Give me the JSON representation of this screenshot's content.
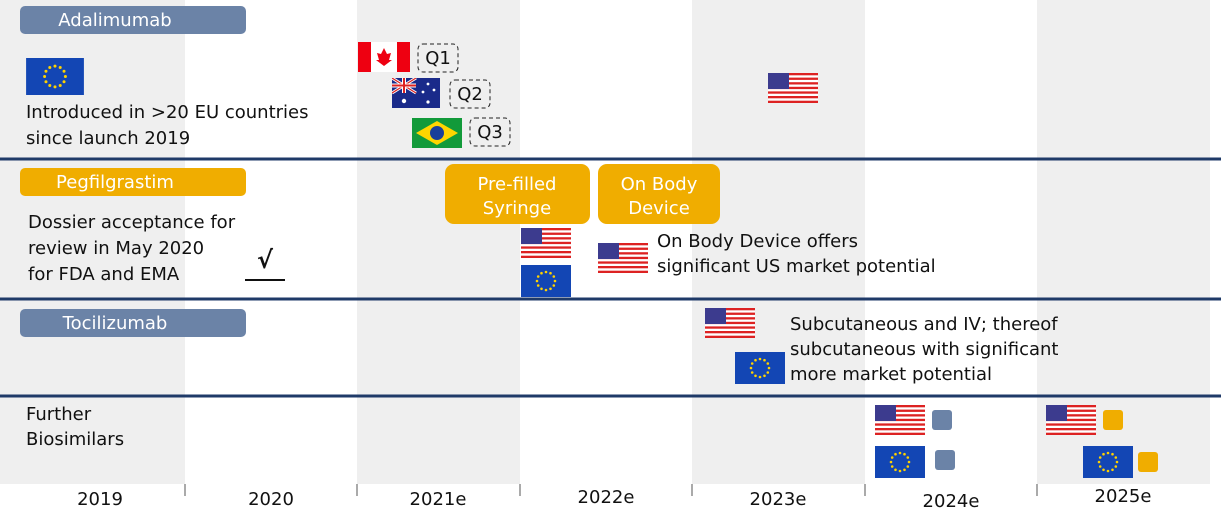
{
  "rows": [
    {
      "label": "Adalimumab",
      "text_lines": [
        "Introduced in >20 EU countries",
        "since launch 2019"
      ],
      "quarters": [
        "Q1",
        "Q2",
        "Q3"
      ]
    },
    {
      "label": "Pegfilgrastim",
      "text_lines": [
        "Dossier acceptance for",
        "review in May 2020",
        "for FDA and EMA"
      ],
      "check": "√",
      "boxes": [
        [
          "Pre-filled",
          "Syringe"
        ],
        [
          "On Body",
          "Device"
        ]
      ],
      "note_lines": [
        "On Body Device offers",
        "significant US market potential"
      ]
    },
    {
      "label": "Tocilizumab",
      "note_lines": [
        "Subcutaneous and IV; thereof",
        "subcutaneous with significant",
        "more market potential"
      ]
    },
    {
      "label_lines": [
        "Further",
        "Biosimilars"
      ]
    }
  ],
  "years": [
    "2019",
    "2020",
    "2021e",
    "2022e",
    "2023e",
    "2024e",
    "2025e"
  ]
}
